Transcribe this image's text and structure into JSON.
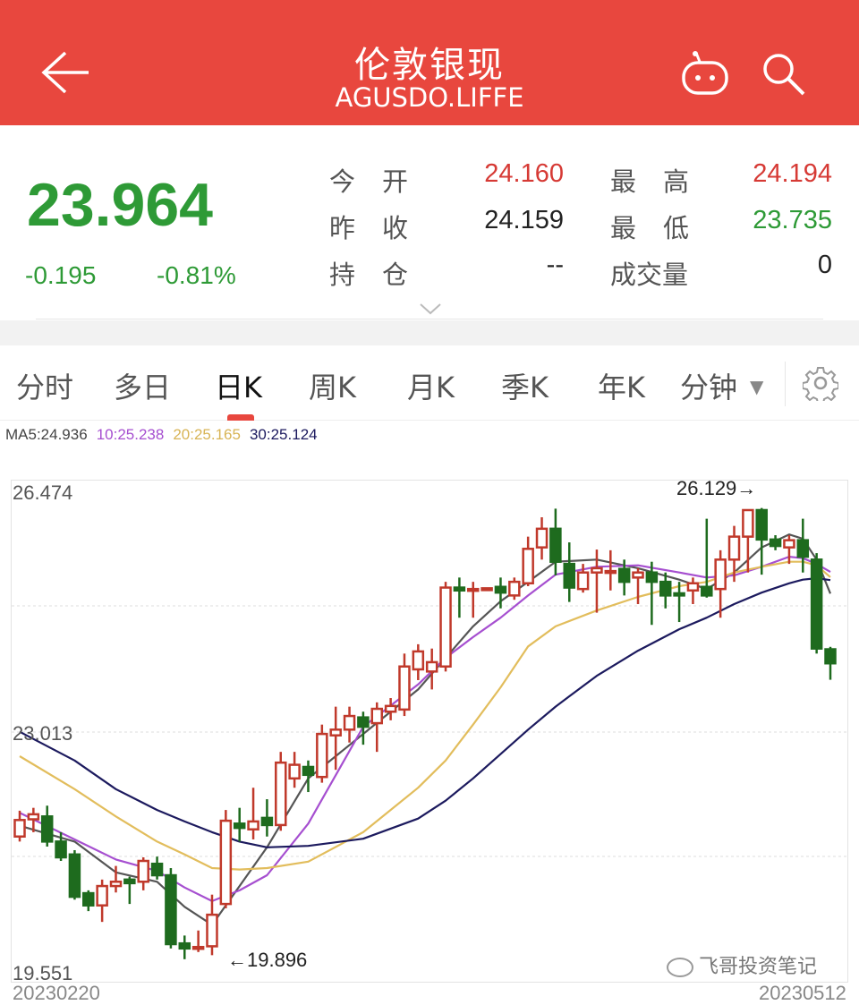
{
  "header": {
    "title": "伦敦银现",
    "subtitle": "AGUSDO.LIFFE",
    "back_icon": "arrow-left-icon",
    "robot_icon": "robot-icon",
    "search_icon": "search-icon",
    "color": "#e8473e"
  },
  "quote": {
    "price": "23.964",
    "change": "-0.195",
    "change_pct": "-0.81%",
    "fields": [
      {
        "label": "今开",
        "value": "24.160",
        "color": "#d63a35"
      },
      {
        "label": "最高",
        "value": "24.194",
        "color": "#d63a35"
      },
      {
        "label": "昨收",
        "value": "24.159",
        "color": "#222222"
      },
      {
        "label": "最低",
        "value": "23.735",
        "color": "#2e9a36"
      },
      {
        "label": "持仓",
        "value": "--",
        "color": "#222222"
      },
      {
        "label": "成交量",
        "value": "0",
        "color": "#222222"
      }
    ],
    "expand_icon": "chevron-down-icon"
  },
  "tabs": [
    {
      "label": "分时",
      "active": false
    },
    {
      "label": "多日",
      "active": false
    },
    {
      "label": "日K",
      "active": true
    },
    {
      "label": "周K",
      "active": false
    },
    {
      "label": "月K",
      "active": false
    },
    {
      "label": "季K",
      "active": false
    },
    {
      "label": "年K",
      "active": false
    },
    {
      "label": "分钟",
      "active": false,
      "dropdown": true
    }
  ],
  "settings_icon": "gear-icon",
  "ma_legend": [
    {
      "label": "MA5:24.936",
      "color": "#444444"
    },
    {
      "label": "10:25.238",
      "color": "#a64fd0"
    },
    {
      "label": "20:25.165",
      "color": "#e2bd5c"
    },
    {
      "label": "30:25.124",
      "color": "#1c1a5e"
    }
  ],
  "watermark": "飞哥投资笔记",
  "chart_data": {
    "type": "candlestick",
    "ylim": [
      19.551,
      26.474
    ],
    "y_tick_labels": [
      "26.474",
      "23.013",
      "19.551"
    ],
    "x_tick_labels": [
      "20230220",
      "20230512"
    ],
    "annotations": [
      {
        "text": "26.129→",
        "candle": 55
      },
      {
        "text": "←19.896",
        "candle": 15
      }
    ],
    "up_color": "#c0392b",
    "down_color": "#1e6b1e",
    "ohlc": [
      [
        21.55,
        21.91,
        21.48,
        21.78
      ],
      [
        21.79,
        21.95,
        21.61,
        21.86
      ],
      [
        21.83,
        21.98,
        21.41,
        21.48
      ],
      [
        21.48,
        21.61,
        21.21,
        21.26
      ],
      [
        21.3,
        21.36,
        20.67,
        20.71
      ],
      [
        20.76,
        20.8,
        20.51,
        20.59
      ],
      [
        20.59,
        20.95,
        20.36,
        20.86
      ],
      [
        20.86,
        21.14,
        20.77,
        20.92
      ],
      [
        20.95,
        20.99,
        20.61,
        20.9
      ],
      [
        20.92,
        21.26,
        20.8,
        21.21
      ],
      [
        21.17,
        21.27,
        20.95,
        21.01
      ],
      [
        21.01,
        21.11,
        19.99,
        20.05
      ],
      [
        20.06,
        20.17,
        19.84,
        19.99
      ],
      [
        19.99,
        20.24,
        19.94,
        20.01
      ],
      [
        20.02,
        20.74,
        19.896,
        20.46
      ],
      [
        20.61,
        21.92,
        20.55,
        21.77
      ],
      [
        21.73,
        21.95,
        21.48,
        21.67
      ],
      [
        21.65,
        22.23,
        21.51,
        21.76
      ],
      [
        21.81,
        22.07,
        21.55,
        21.71
      ],
      [
        21.71,
        22.73,
        21.63,
        22.58
      ],
      [
        22.36,
        22.73,
        22.23,
        22.55
      ],
      [
        22.52,
        22.61,
        22.17,
        22.41
      ],
      [
        22.38,
        23.11,
        22.3,
        22.98
      ],
      [
        22.96,
        23.36,
        22.48,
        23.04
      ],
      [
        23.04,
        23.36,
        22.86,
        23.23
      ],
      [
        23.21,
        23.29,
        22.83,
        23.08
      ],
      [
        23.13,
        23.42,
        22.73,
        23.33
      ],
      [
        23.29,
        23.48,
        23.17,
        23.37
      ],
      [
        23.32,
        24.1,
        23.23,
        23.92
      ],
      [
        23.88,
        24.23,
        23.73,
        24.13
      ],
      [
        23.85,
        24.17,
        23.6,
        23.98
      ],
      [
        23.92,
        25.1,
        23.85,
        25.02
      ],
      [
        25.02,
        25.16,
        24.6,
        24.98
      ],
      [
        24.98,
        25.1,
        24.6,
        25.0
      ],
      [
        24.99,
        25.02,
        24.98,
        25.01
      ],
      [
        25.03,
        25.16,
        24.73,
        24.95
      ],
      [
        24.91,
        25.16,
        24.85,
        25.1
      ],
      [
        25.08,
        25.73,
        25.04,
        25.56
      ],
      [
        25.58,
        26.0,
        25.41,
        25.84
      ],
      [
        25.84,
        26.12,
        25.19,
        25.38
      ],
      [
        25.35,
        25.65,
        24.82,
        25.02
      ],
      [
        25.0,
        25.35,
        24.95,
        25.23
      ],
      [
        25.23,
        25.55,
        24.67,
        25.29
      ],
      [
        25.23,
        25.54,
        24.98,
        25.25
      ],
      [
        25.28,
        25.41,
        24.91,
        25.1
      ],
      [
        25.16,
        25.29,
        24.79,
        25.23
      ],
      [
        25.23,
        25.38,
        24.5,
        25.1
      ],
      [
        25.1,
        25.23,
        24.73,
        24.91
      ],
      [
        24.94,
        25.1,
        24.54,
        24.91
      ],
      [
        24.98,
        25.16,
        24.79,
        25.08
      ],
      [
        25.03,
        25.98,
        24.88,
        24.91
      ],
      [
        25.0,
        25.54,
        24.6,
        25.41
      ],
      [
        25.41,
        25.88,
        25.1,
        25.73
      ],
      [
        25.73,
        26.1,
        25.23,
        26.1
      ],
      [
        26.1,
        26.129,
        25.2,
        25.69
      ],
      [
        25.69,
        25.75,
        25.54,
        25.6
      ],
      [
        25.58,
        25.75,
        25.35,
        25.68
      ],
      [
        25.68,
        25.98,
        25.23,
        25.45
      ],
      [
        25.41,
        25.5,
        24.1,
        24.17
      ],
      [
        24.16,
        24.194,
        23.735,
        23.964
      ]
    ],
    "ma_candles": [
      1,
      5,
      8,
      11,
      13,
      15,
      17,
      19,
      22,
      26,
      30,
      32,
      34,
      36,
      38,
      40,
      43,
      46,
      49,
      51,
      53,
      55,
      57,
      58,
      59,
      60
    ],
    "ma": [
      {
        "name": "MA5",
        "color": "#555555",
        "values": [
          21.7,
          21.48,
          21.05,
          20.92,
          20.57,
          20.32,
          20.86,
          21.4,
          22.36,
          22.98,
          23.6,
          24.04,
          24.48,
          24.83,
          25.1,
          25.38,
          25.41,
          25.29,
          25.13,
          25.0,
          25.23,
          25.58,
          25.76,
          25.7,
          25.41,
          24.936
        ]
      },
      {
        "name": "10",
        "color": "#a64fd0",
        "values": [
          21.88,
          21.51,
          21.23,
          21.07,
          20.84,
          20.65,
          20.8,
          21.01,
          21.73,
          23.08,
          23.67,
          24.04,
          24.33,
          24.6,
          24.91,
          25.2,
          25.31,
          25.33,
          25.23,
          25.16,
          25.19,
          25.31,
          25.45,
          25.43,
          25.35,
          25.238
        ]
      },
      {
        "name": "20",
        "color": "#e2bd5c",
        "values": [
          22.67,
          22.21,
          21.83,
          21.48,
          21.3,
          21.11,
          21.09,
          21.11,
          21.2,
          21.61,
          22.23,
          22.61,
          23.11,
          23.63,
          24.2,
          24.48,
          24.7,
          24.89,
          25.04,
          25.1,
          25.23,
          25.31,
          25.38,
          25.38,
          25.33,
          25.165
        ]
      },
      {
        "name": "30",
        "color": "#1c1a5e",
        "values": [
          23.01,
          22.61,
          22.21,
          21.92,
          21.76,
          21.61,
          21.48,
          21.4,
          21.42,
          21.52,
          21.8,
          22.05,
          22.36,
          22.7,
          23.04,
          23.36,
          23.79,
          24.14,
          24.44,
          24.6,
          24.79,
          24.95,
          25.08,
          25.13,
          25.15,
          25.124
        ]
      }
    ]
  }
}
